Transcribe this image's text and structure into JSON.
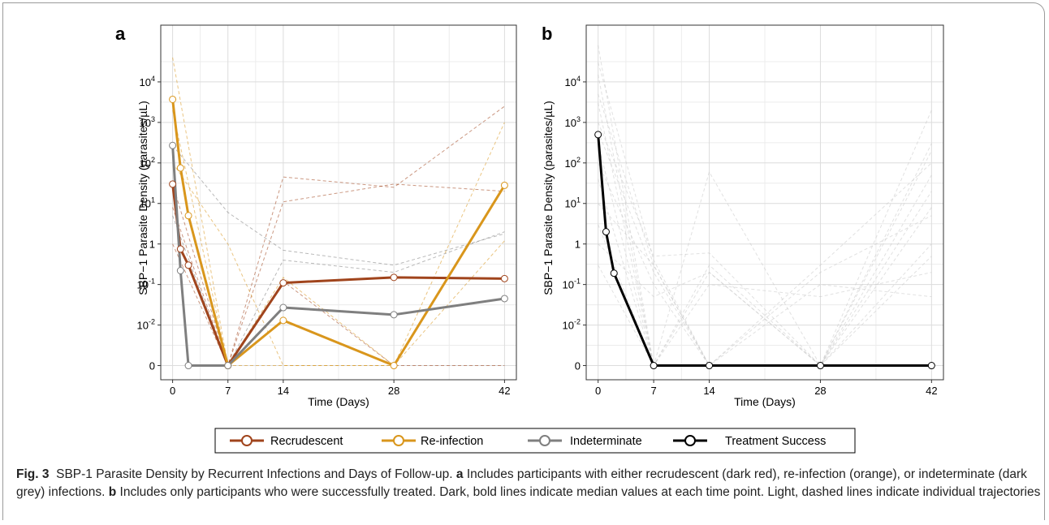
{
  "figure": {
    "caption_label": "Fig. 3",
    "caption_title": "SBP-1 Parasite Density by Recurrent Infections and Days of Follow-up.",
    "caption_a_letter": "a",
    "caption_a_text": "Includes participants with either recrudescent (dark red), re-infection (orange), or indeterminate (dark grey) infections.",
    "caption_b_letter": "b",
    "caption_b_text": "Includes only participants who were successfully treated. Dark, bold lines indicate median values at each time point. Light, dashed lines indicate individual trajectories"
  },
  "legend": {
    "items": [
      {
        "label": "Recrudescent",
        "color": "#a0441c"
      },
      {
        "label": "Re-infection",
        "color": "#d9961c"
      },
      {
        "label": "Indeterminate",
        "color": "#7f7f7f"
      },
      {
        "label": "Treatment Success",
        "color": "#000000"
      }
    ]
  },
  "chart_data": [
    {
      "panel": "a",
      "type": "line",
      "xlabel": "Time (Days)",
      "ylabel": "SBP−1 Parasite Density (parasites/µL)",
      "x_ticks": [
        0,
        7,
        14,
        28,
        42
      ],
      "y_ticks": [
        "0",
        "10^-2",
        "10^-1",
        "1",
        "10^1",
        "10^2",
        "10^3",
        "10^4"
      ],
      "y_scale": "pseudo-log",
      "grid": true,
      "series": [
        {
          "name": "Recrudescent",
          "color": "#a0441c",
          "x": [
            0,
            1,
            2,
            7,
            14,
            28,
            42
          ],
          "y": [
            30,
            0.75,
            0.3,
            0,
            0.11,
            0.15,
            0.14
          ]
        },
        {
          "name": "Re-infection",
          "color": "#d9961c",
          "x": [
            0,
            1,
            2,
            7,
            14,
            28,
            42
          ],
          "y": [
            3700,
            75,
            5,
            0,
            0.013,
            0,
            28
          ]
        },
        {
          "name": "Indeterminate",
          "color": "#7f7f7f",
          "x": [
            0,
            1,
            2,
            7,
            14,
            28,
            42
          ],
          "y": [
            270,
            0.22,
            0,
            0,
            0.027,
            0.018,
            0.045
          ]
        }
      ],
      "trajectories": [
        {
          "color": "#a0441c",
          "x": [
            0,
            7,
            14,
            28,
            42
          ],
          "y": [
            30,
            0,
            45,
            25,
            2500
          ]
        },
        {
          "color": "#a0441c",
          "x": [
            0,
            7,
            14,
            28,
            42
          ],
          "y": [
            8,
            0,
            11,
            30,
            20
          ]
        },
        {
          "color": "#a0441c",
          "x": [
            0,
            7,
            14,
            28,
            42
          ],
          "y": [
            1,
            0,
            0.12,
            0,
            0
          ]
        },
        {
          "color": "#d9961c",
          "x": [
            0,
            7,
            14,
            28,
            42
          ],
          "y": [
            40000,
            0,
            0,
            0,
            1000
          ]
        },
        {
          "color": "#d9961c",
          "x": [
            0,
            7,
            14,
            28,
            42
          ],
          "y": [
            2000,
            0,
            0.15,
            0,
            28
          ]
        },
        {
          "color": "#d9961c",
          "x": [
            0,
            7,
            14,
            28,
            42
          ],
          "y": [
            100,
            1,
            0,
            0,
            1.2
          ]
        },
        {
          "color": "#7f7f7f",
          "x": [
            0,
            7,
            14,
            28,
            42
          ],
          "y": [
            270,
            6,
            0.7,
            0.3,
            1.8
          ]
        },
        {
          "color": "#7f7f7f",
          "x": [
            0,
            7,
            14,
            28,
            42
          ],
          "y": [
            5,
            0,
            0.4,
            0.2,
            2
          ]
        }
      ]
    },
    {
      "panel": "b",
      "type": "line",
      "xlabel": "Time (Days)",
      "ylabel": "SBP−1 Parasite Density (parasites/µL)",
      "x_ticks": [
        0,
        7,
        14,
        28,
        42
      ],
      "y_ticks": [
        "0",
        "10^-2",
        "10^-1",
        "1",
        "10^1",
        "10^2",
        "10^3",
        "10^4"
      ],
      "y_scale": "pseudo-log",
      "grid": true,
      "series": [
        {
          "name": "Treatment Success",
          "color": "#000000",
          "x": [
            0,
            1,
            2,
            7,
            14,
            28,
            42
          ],
          "y": [
            500,
            2,
            0.19,
            0,
            0,
            0,
            0
          ]
        }
      ],
      "trajectories": [
        {
          "color": "#c8c8c8",
          "x": [
            0,
            7,
            14,
            28,
            42
          ],
          "y": [
            80000,
            0,
            0,
            0,
            2000
          ]
        },
        {
          "color": "#c8c8c8",
          "x": [
            0,
            7,
            14,
            28,
            42
          ],
          "y": [
            30000,
            0.4,
            0,
            0,
            300
          ]
        },
        {
          "color": "#c8c8c8",
          "x": [
            0,
            7,
            14,
            28,
            42
          ],
          "y": [
            15000,
            0,
            60,
            0,
            0
          ]
        },
        {
          "color": "#c8c8c8",
          "x": [
            0,
            7,
            14,
            28,
            42
          ],
          "y": [
            5000,
            0.3,
            0,
            0.3,
            100
          ]
        },
        {
          "color": "#c8c8c8",
          "x": [
            0,
            7,
            14,
            28,
            42
          ],
          "y": [
            3000,
            0,
            0.2,
            0,
            20
          ]
        },
        {
          "color": "#c8c8c8",
          "x": [
            0,
            7,
            14,
            28,
            42
          ],
          "y": [
            1000,
            0.5,
            0.6,
            0,
            0
          ]
        },
        {
          "color": "#c8c8c8",
          "x": [
            0,
            7,
            14,
            28,
            42
          ],
          "y": [
            600,
            0.2,
            0,
            0.2,
            5
          ]
        },
        {
          "color": "#c8c8c8",
          "x": [
            0,
            7,
            14,
            28,
            42
          ],
          "y": [
            300,
            0,
            0.3,
            0,
            0.5
          ]
        },
        {
          "color": "#c8c8c8",
          "x": [
            0,
            7,
            14,
            28,
            42
          ],
          "y": [
            100,
            0.1,
            0,
            0,
            1
          ]
        },
        {
          "color": "#c8c8c8",
          "x": [
            0,
            7,
            14,
            28,
            42
          ],
          "y": [
            40,
            0,
            0.1,
            0.05,
            0.2
          ]
        },
        {
          "color": "#c8c8c8",
          "x": [
            0,
            7,
            14,
            28,
            42
          ],
          "y": [
            10,
            0.3,
            0,
            0,
            200
          ]
        },
        {
          "color": "#c8c8c8",
          "x": [
            0,
            7,
            14,
            28,
            42
          ],
          "y": [
            3,
            0,
            0,
            0.1,
            0.05
          ]
        },
        {
          "color": "#c8c8c8",
          "x": [
            0,
            7,
            14,
            28,
            42
          ],
          "y": [
            1,
            0.05,
            0.2,
            0,
            50
          ]
        },
        {
          "color": "#c8c8c8",
          "x": [
            0,
            7,
            14,
            28,
            42
          ],
          "y": [
            0.3,
            0,
            0,
            0,
            8
          ]
        }
      ]
    }
  ]
}
